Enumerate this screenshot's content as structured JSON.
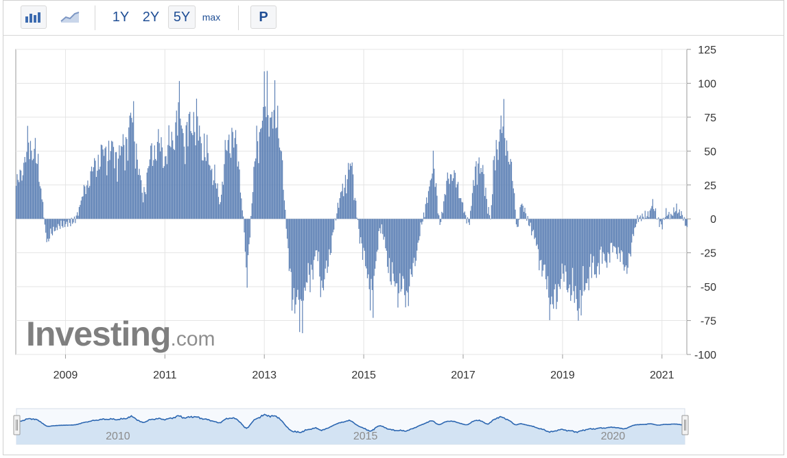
{
  "toolbar": {
    "bar_icon": "bar-chart-icon",
    "line_icon": "line-chart-icon",
    "ranges": [
      "1Y",
      "2Y",
      "5Y",
      "max"
    ],
    "active_range": "5Y",
    "period_label": "P"
  },
  "logo": {
    "name": "Investing",
    "suffix": ".com"
  },
  "colors": {
    "bar": "#5b7fb4",
    "nav_line": "#2a65b0",
    "nav_fill": "#cfe0f2",
    "grid": "#e4e4e4",
    "axis": "#9a9a9a"
  },
  "chart_data": {
    "type": "bar",
    "x_range": [
      2008.0,
      2021.5
    ],
    "ylim": [
      -100,
      125
    ],
    "y_ticks": [
      125,
      100,
      75,
      50,
      25,
      0,
      -25,
      -50,
      -75,
      -100
    ],
    "x_ticks": [
      "2009",
      "2011",
      "2013",
      "2015",
      "2017",
      "2019",
      "2021"
    ],
    "grid": true,
    "y_axis_side": "right",
    "series": [
      {
        "values_x_start": 2008.0,
        "values_x_step_years": 0.0192,
        "anchors": [
          [
            2008.0,
            22
          ],
          [
            2008.08,
            35
          ],
          [
            2008.18,
            40
          ],
          [
            2008.26,
            60
          ],
          [
            2008.33,
            50
          ],
          [
            2008.4,
            45
          ],
          [
            2008.48,
            30
          ],
          [
            2008.56,
            2
          ],
          [
            2008.62,
            -18
          ],
          [
            2008.75,
            -8
          ],
          [
            2008.95,
            -4
          ],
          [
            2009.1,
            -3
          ],
          [
            2009.2,
            0
          ],
          [
            2009.32,
            15
          ],
          [
            2009.45,
            28
          ],
          [
            2009.6,
            40
          ],
          [
            2009.75,
            48
          ],
          [
            2009.9,
            50
          ],
          [
            2010.05,
            45
          ],
          [
            2010.2,
            55
          ],
          [
            2010.35,
            75
          ],
          [
            2010.45,
            40
          ],
          [
            2010.55,
            15
          ],
          [
            2010.7,
            45
          ],
          [
            2010.85,
            55
          ],
          [
            2011.0,
            45
          ],
          [
            2011.15,
            60
          ],
          [
            2011.3,
            80
          ],
          [
            2011.4,
            55
          ],
          [
            2011.55,
            75
          ],
          [
            2011.7,
            60
          ],
          [
            2011.85,
            45
          ],
          [
            2012.0,
            30
          ],
          [
            2012.1,
            10
          ],
          [
            2012.2,
            45
          ],
          [
            2012.35,
            65
          ],
          [
            2012.48,
            40
          ],
          [
            2012.58,
            -5
          ],
          [
            2012.65,
            -45
          ],
          [
            2012.72,
            0
          ],
          [
            2012.82,
            50
          ],
          [
            2012.95,
            75
          ],
          [
            2013.05,
            90
          ],
          [
            2013.15,
            70
          ],
          [
            2013.25,
            80
          ],
          [
            2013.32,
            55
          ],
          [
            2013.42,
            0
          ],
          [
            2013.5,
            -40
          ],
          [
            2013.6,
            -60
          ],
          [
            2013.7,
            -70
          ],
          [
            2013.8,
            -55
          ],
          [
            2013.92,
            -40
          ],
          [
            2014.05,
            -25
          ],
          [
            2014.15,
            -50
          ],
          [
            2014.25,
            -40
          ],
          [
            2014.35,
            -15
          ],
          [
            2014.45,
            5
          ],
          [
            2014.55,
            20
          ],
          [
            2014.65,
            30
          ],
          [
            2014.75,
            40
          ],
          [
            2014.82,
            15
          ],
          [
            2014.9,
            -10
          ],
          [
            2015.0,
            -30
          ],
          [
            2015.1,
            -45
          ],
          [
            2015.18,
            -65
          ],
          [
            2015.25,
            -25
          ],
          [
            2015.32,
            -5
          ],
          [
            2015.4,
            -15
          ],
          [
            2015.55,
            -45
          ],
          [
            2015.7,
            -50
          ],
          [
            2015.85,
            -55
          ],
          [
            2015.95,
            -45
          ],
          [
            2016.05,
            -25
          ],
          [
            2016.15,
            -5
          ],
          [
            2016.22,
            5
          ],
          [
            2016.3,
            20
          ],
          [
            2016.38,
            45
          ],
          [
            2016.45,
            20
          ],
          [
            2016.52,
            -5
          ],
          [
            2016.6,
            10
          ],
          [
            2016.7,
            35
          ],
          [
            2016.8,
            30
          ],
          [
            2016.88,
            25
          ],
          [
            2016.95,
            15
          ],
          [
            2017.05,
            0
          ],
          [
            2017.12,
            -3
          ],
          [
            2017.2,
            25
          ],
          [
            2017.3,
            45
          ],
          [
            2017.4,
            30
          ],
          [
            2017.48,
            10
          ],
          [
            2017.55,
            0
          ],
          [
            2017.62,
            45
          ],
          [
            2017.72,
            62
          ],
          [
            2017.82,
            68
          ],
          [
            2017.9,
            50
          ],
          [
            2018.0,
            25
          ],
          [
            2018.08,
            -10
          ],
          [
            2018.15,
            10
          ],
          [
            2018.22,
            8
          ],
          [
            2018.3,
            -2
          ],
          [
            2018.4,
            -10
          ],
          [
            2018.5,
            -25
          ],
          [
            2018.62,
            -40
          ],
          [
            2018.75,
            -60
          ],
          [
            2018.85,
            -65
          ],
          [
            2018.95,
            -40
          ],
          [
            2019.05,
            -45
          ],
          [
            2019.15,
            -50
          ],
          [
            2019.25,
            -60
          ],
          [
            2019.35,
            -62
          ],
          [
            2019.45,
            -50
          ],
          [
            2019.55,
            -35
          ],
          [
            2019.65,
            -40
          ],
          [
            2019.75,
            -28
          ],
          [
            2019.85,
            -30
          ],
          [
            2019.95,
            -25
          ],
          [
            2020.05,
            -20
          ],
          [
            2020.15,
            -28
          ],
          [
            2020.25,
            -35
          ],
          [
            2020.35,
            -30
          ],
          [
            2020.42,
            -10
          ],
          [
            2020.5,
            0
          ],
          [
            2020.62,
            2
          ],
          [
            2020.72,
            3
          ],
          [
            2020.8,
            12
          ],
          [
            2020.88,
            2
          ],
          [
            2020.98,
            -6
          ],
          [
            2021.08,
            5
          ],
          [
            2021.18,
            2
          ],
          [
            2021.28,
            8
          ],
          [
            2021.4,
            3
          ],
          [
            2021.5,
            -8
          ]
        ]
      }
    ]
  },
  "navigator": {
    "labels": [
      "2010",
      "2015",
      "2020"
    ]
  }
}
